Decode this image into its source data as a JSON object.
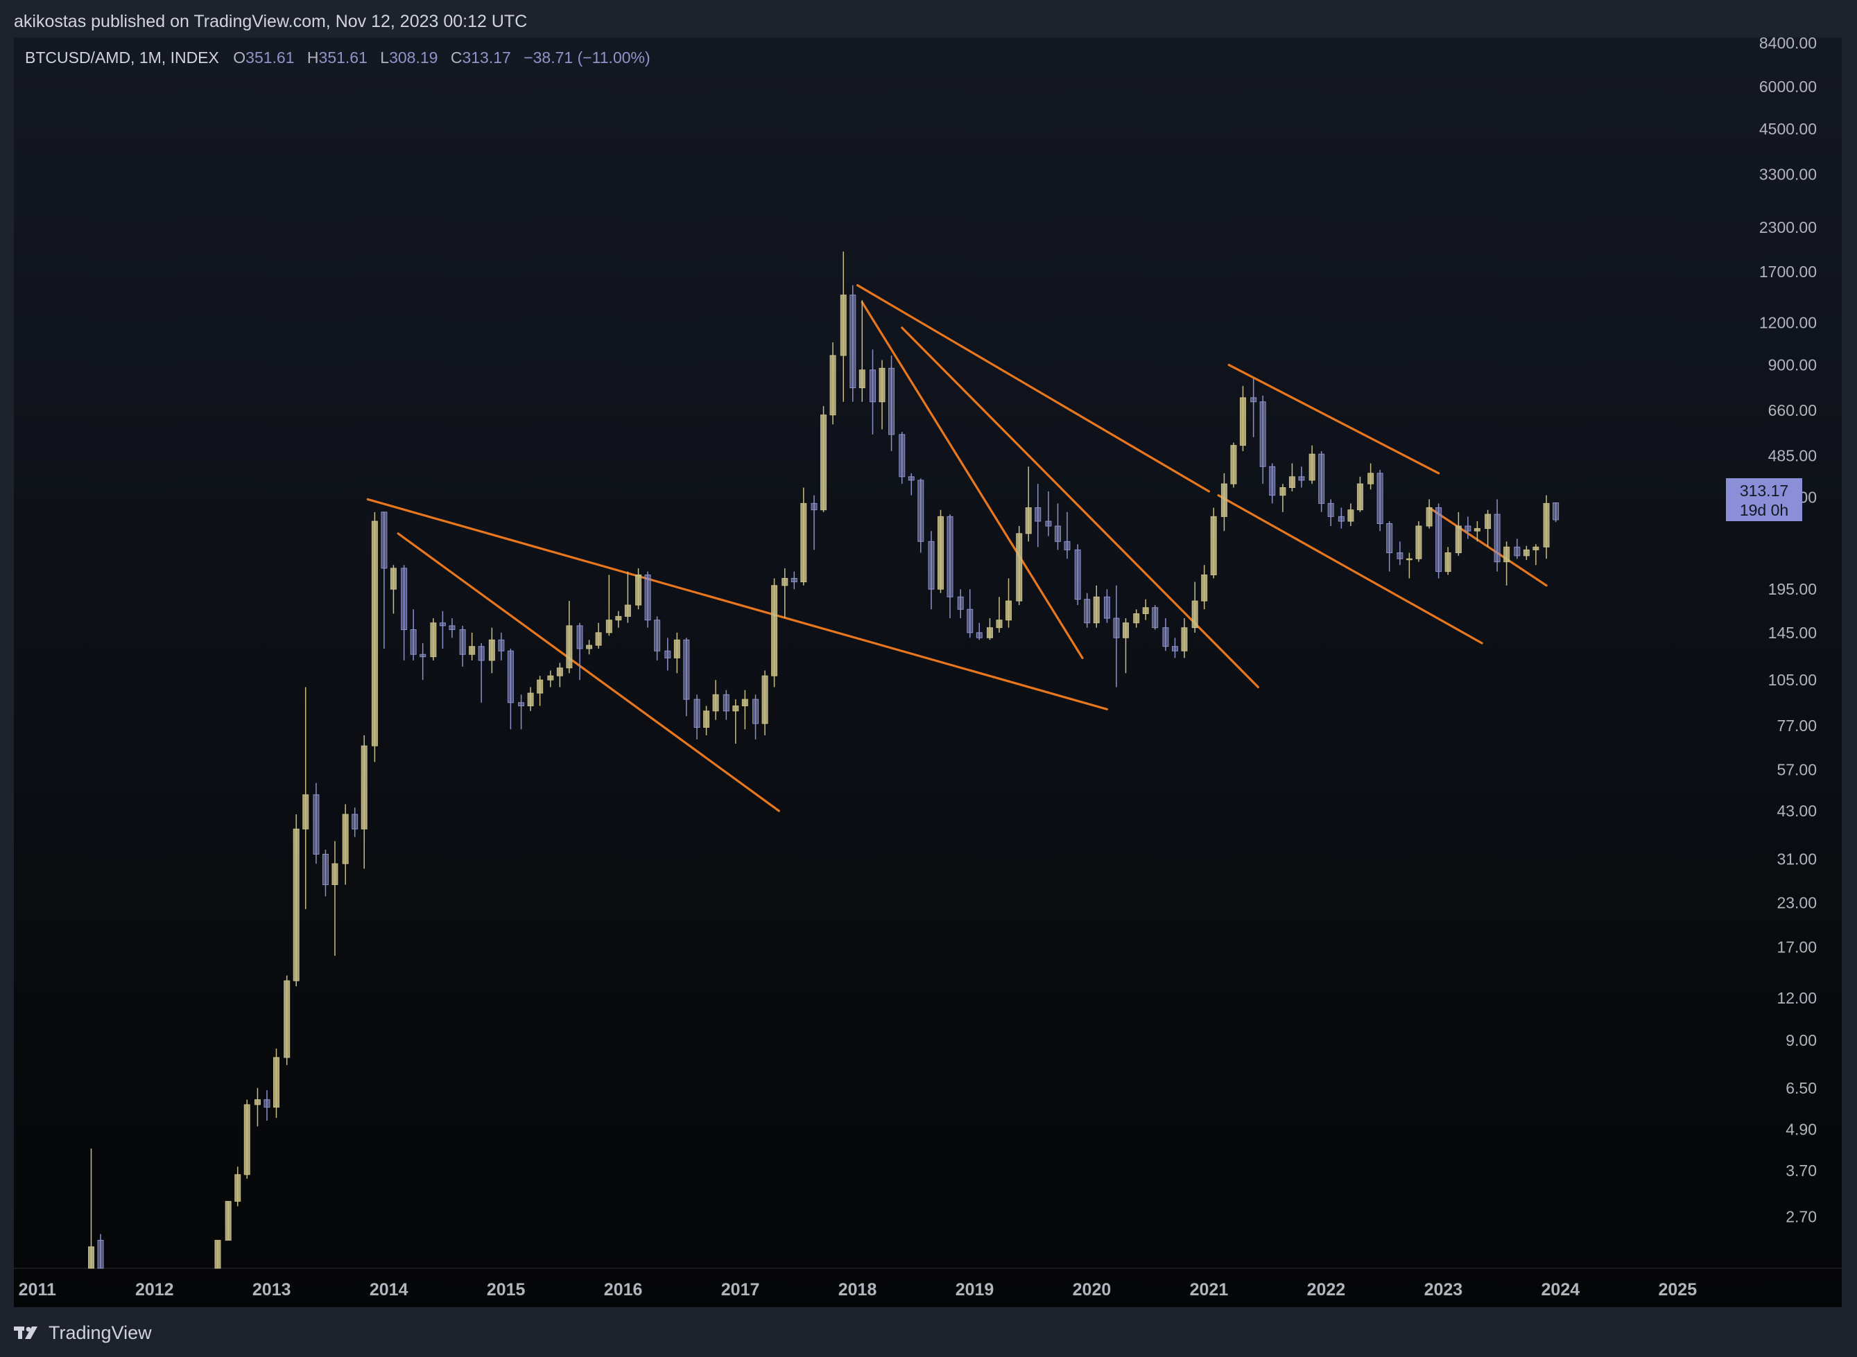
{
  "header": {
    "publisher_line": "akikostas published on TradingView.com, Nov 12, 2023 00:12 UTC"
  },
  "legend": {
    "symbol": "BTCUSD/AMD, 1M, INDEX",
    "open_key": "O",
    "open": "351.61",
    "high_key": "H",
    "high": "351.61",
    "low_key": "L",
    "low": "308.19",
    "close_key": "C",
    "close": "313.17",
    "change": "−38.71 (−11.00%)"
  },
  "price_tag": {
    "price": "313.17",
    "countdown": "19d 0h"
  },
  "footer": {
    "brand": "TradingView",
    "logo_icon": "tradingview-logo-icon"
  },
  "colors": {
    "up": "#c7bd86",
    "down": "#8c90c8",
    "trendline": "#e9771e",
    "axis_text": "#b2b5be"
  },
  "chart_data": {
    "type": "candlestick",
    "scale": "log",
    "interval": "1M",
    "y_tick_labels": [
      "8400.00",
      "6000.00",
      "4500.00",
      "3300.00",
      "2300.00",
      "1700.00",
      "1200.00",
      "900.00",
      "660.00",
      "485.00",
      "365.00",
      "195.00",
      "145.00",
      "105.00",
      "77.00",
      "57.00",
      "43.00",
      "31.00",
      "23.00",
      "17.00",
      "12.00",
      "9.00",
      "6.50",
      "4.90",
      "3.70",
      "2.70"
    ],
    "x_tick_labels": [
      "2011",
      "2012",
      "2013",
      "2014",
      "2015",
      "2016",
      "2017",
      "2018",
      "2019",
      "2020",
      "2021",
      "2022",
      "2023",
      "2024",
      "2025"
    ],
    "x_range": [
      2010.8,
      2025.3
    ],
    "ylim": [
      1.9,
      8400
    ],
    "candles": [
      {
        "t": 2011.46,
        "o": 1.9,
        "h": 4.3,
        "l": 1.9,
        "c": 2.2
      },
      {
        "t": 2011.54,
        "o": 2.3,
        "h": 2.4,
        "l": 1.9,
        "c": 1.9
      },
      {
        "t": 2012.54,
        "o": 1.9,
        "h": 2.3,
        "l": 1.9,
        "c": 2.3
      },
      {
        "t": 2012.63,
        "o": 2.3,
        "h": 3.0,
        "l": 2.3,
        "c": 3.0
      },
      {
        "t": 2012.71,
        "o": 3.0,
        "h": 3.8,
        "l": 2.9,
        "c": 3.6
      },
      {
        "t": 2012.79,
        "o": 3.6,
        "h": 6.0,
        "l": 3.5,
        "c": 5.8
      },
      {
        "t": 2012.88,
        "o": 5.8,
        "h": 6.5,
        "l": 5.0,
        "c": 6.0
      },
      {
        "t": 2012.96,
        "o": 6.0,
        "h": 6.4,
        "l": 5.2,
        "c": 5.7
      },
      {
        "t": 2013.04,
        "o": 5.7,
        "h": 8.5,
        "l": 5.3,
        "c": 8.0
      },
      {
        "t": 2013.13,
        "o": 8.0,
        "h": 14.0,
        "l": 7.6,
        "c": 13.5
      },
      {
        "t": 2013.21,
        "o": 13.5,
        "h": 42.0,
        "l": 13.0,
        "c": 38.0
      },
      {
        "t": 2013.29,
        "o": 38.0,
        "h": 100.0,
        "l": 22.0,
        "c": 48.0
      },
      {
        "t": 2013.38,
        "o": 48.0,
        "h": 52.0,
        "l": 30.0,
        "c": 32.0
      },
      {
        "t": 2013.46,
        "o": 32.0,
        "h": 33.0,
        "l": 24.0,
        "c": 26.0
      },
      {
        "t": 2013.54,
        "o": 26.0,
        "h": 35.0,
        "l": 16.0,
        "c": 30.0
      },
      {
        "t": 2013.63,
        "o": 30.0,
        "h": 45.0,
        "l": 26.0,
        "c": 42.0
      },
      {
        "t": 2013.71,
        "o": 42.0,
        "h": 44.0,
        "l": 36.0,
        "c": 38.0
      },
      {
        "t": 2013.79,
        "o": 38.0,
        "h": 72.0,
        "l": 29.0,
        "c": 67.0
      },
      {
        "t": 2013.88,
        "o": 67.0,
        "h": 330.0,
        "l": 60.0,
        "c": 310.0
      },
      {
        "t": 2013.96,
        "o": 330.0,
        "h": 330.0,
        "l": 130.0,
        "c": 225.0
      },
      {
        "t": 2014.04,
        "o": 195.0,
        "h": 230.0,
        "l": 165.0,
        "c": 225.0
      },
      {
        "t": 2014.13,
        "o": 225.0,
        "h": 230.0,
        "l": 120.0,
        "c": 148.0
      },
      {
        "t": 2014.21,
        "o": 148.0,
        "h": 170.0,
        "l": 120.0,
        "c": 125.0
      },
      {
        "t": 2014.29,
        "o": 125.0,
        "h": 135.0,
        "l": 105.0,
        "c": 123.0
      },
      {
        "t": 2014.38,
        "o": 123.0,
        "h": 160.0,
        "l": 120.0,
        "c": 155.0
      },
      {
        "t": 2014.46,
        "o": 155.0,
        "h": 168.0,
        "l": 130.0,
        "c": 152.0
      },
      {
        "t": 2014.54,
        "o": 152.0,
        "h": 160.0,
        "l": 140.0,
        "c": 148.0
      },
      {
        "t": 2014.63,
        "o": 148.0,
        "h": 152.0,
        "l": 115.0,
        "c": 125.0
      },
      {
        "t": 2014.71,
        "o": 125.0,
        "h": 145.0,
        "l": 120.0,
        "c": 132.0
      },
      {
        "t": 2014.79,
        "o": 132.0,
        "h": 135.0,
        "l": 90.0,
        "c": 120.0
      },
      {
        "t": 2014.88,
        "o": 120.0,
        "h": 150.0,
        "l": 110.0,
        "c": 138.0
      },
      {
        "t": 2014.96,
        "o": 138.0,
        "h": 145.0,
        "l": 120.0,
        "c": 128.0
      },
      {
        "t": 2015.04,
        "o": 128.0,
        "h": 130.0,
        "l": 75.0,
        "c": 90.0
      },
      {
        "t": 2015.13,
        "o": 90.0,
        "h": 95.0,
        "l": 75.0,
        "c": 88.0
      },
      {
        "t": 2015.21,
        "o": 88.0,
        "h": 100.0,
        "l": 85.0,
        "c": 96.0
      },
      {
        "t": 2015.29,
        "o": 96.0,
        "h": 108.0,
        "l": 88.0,
        "c": 105.0
      },
      {
        "t": 2015.38,
        "o": 105.0,
        "h": 112.0,
        "l": 100.0,
        "c": 108.0
      },
      {
        "t": 2015.46,
        "o": 108.0,
        "h": 118.0,
        "l": 100.0,
        "c": 114.0
      },
      {
        "t": 2015.54,
        "o": 114.0,
        "h": 180.0,
        "l": 110.0,
        "c": 152.0
      },
      {
        "t": 2015.63,
        "o": 152.0,
        "h": 155.0,
        "l": 105.0,
        "c": 130.0
      },
      {
        "t": 2015.71,
        "o": 130.0,
        "h": 138.0,
        "l": 125.0,
        "c": 133.0
      },
      {
        "t": 2015.79,
        "o": 133.0,
        "h": 155.0,
        "l": 130.0,
        "c": 145.0
      },
      {
        "t": 2015.88,
        "o": 145.0,
        "h": 215.0,
        "l": 142.0,
        "c": 158.0
      },
      {
        "t": 2015.96,
        "o": 158.0,
        "h": 168.0,
        "l": 150.0,
        "c": 162.0
      },
      {
        "t": 2016.04,
        "o": 162.0,
        "h": 220.0,
        "l": 155.0,
        "c": 175.0
      },
      {
        "t": 2016.13,
        "o": 175.0,
        "h": 225.0,
        "l": 170.0,
        "c": 215.0
      },
      {
        "t": 2016.21,
        "o": 215.0,
        "h": 220.0,
        "l": 150.0,
        "c": 158.0
      },
      {
        "t": 2016.29,
        "o": 158.0,
        "h": 162.0,
        "l": 120.0,
        "c": 128.0
      },
      {
        "t": 2016.38,
        "o": 128.0,
        "h": 140.0,
        "l": 112.0,
        "c": 122.0
      },
      {
        "t": 2016.46,
        "o": 122.0,
        "h": 145.0,
        "l": 110.0,
        "c": 138.0
      },
      {
        "t": 2016.54,
        "o": 138.0,
        "h": 140.0,
        "l": 82.0,
        "c": 92.0
      },
      {
        "t": 2016.63,
        "o": 92.0,
        "h": 95.0,
        "l": 70.0,
        "c": 76.0
      },
      {
        "t": 2016.71,
        "o": 76.0,
        "h": 88.0,
        "l": 72.0,
        "c": 85.0
      },
      {
        "t": 2016.79,
        "o": 85.0,
        "h": 105.0,
        "l": 80.0,
        "c": 95.0
      },
      {
        "t": 2016.88,
        "o": 95.0,
        "h": 98.0,
        "l": 80.0,
        "c": 85.0
      },
      {
        "t": 2016.96,
        "o": 85.0,
        "h": 92.0,
        "l": 68.0,
        "c": 88.0
      },
      {
        "t": 2017.04,
        "o": 88.0,
        "h": 98.0,
        "l": 75.0,
        "c": 92.0
      },
      {
        "t": 2017.13,
        "o": 92.0,
        "h": 95.0,
        "l": 70.0,
        "c": 78.0
      },
      {
        "t": 2017.21,
        "o": 78.0,
        "h": 112.0,
        "l": 72.0,
        "c": 108.0
      },
      {
        "t": 2017.29,
        "o": 108.0,
        "h": 210.0,
        "l": 100.0,
        "c": 200.0
      },
      {
        "t": 2017.38,
        "o": 200.0,
        "h": 225.0,
        "l": 160.0,
        "c": 210.0
      },
      {
        "t": 2017.46,
        "o": 210.0,
        "h": 220.0,
        "l": 195.0,
        "c": 205.0
      },
      {
        "t": 2017.54,
        "o": 205.0,
        "h": 390.0,
        "l": 200.0,
        "c": 350.0
      },
      {
        "t": 2017.63,
        "o": 350.0,
        "h": 370.0,
        "l": 255.0,
        "c": 335.0
      },
      {
        "t": 2017.71,
        "o": 335.0,
        "h": 680.0,
        "l": 330.0,
        "c": 640.0
      },
      {
        "t": 2017.79,
        "o": 640.0,
        "h": 1050.0,
        "l": 600.0,
        "c": 960.0
      },
      {
        "t": 2017.88,
        "o": 960.0,
        "h": 1950.0,
        "l": 700.0,
        "c": 1450.0
      },
      {
        "t": 2017.96,
        "o": 1450.0,
        "h": 1550.0,
        "l": 700.0,
        "c": 770.0
      },
      {
        "t": 2018.04,
        "o": 770.0,
        "h": 1400.0,
        "l": 700.0,
        "c": 870.0
      },
      {
        "t": 2018.13,
        "o": 870.0,
        "h": 1000.0,
        "l": 560.0,
        "c": 700.0
      },
      {
        "t": 2018.21,
        "o": 700.0,
        "h": 930.0,
        "l": 580.0,
        "c": 880.0
      },
      {
        "t": 2018.29,
        "o": 880.0,
        "h": 960.0,
        "l": 500.0,
        "c": 560.0
      },
      {
        "t": 2018.38,
        "o": 560.0,
        "h": 570.0,
        "l": 400.0,
        "c": 420.0
      },
      {
        "t": 2018.46,
        "o": 420.0,
        "h": 430.0,
        "l": 370.0,
        "c": 410.0
      },
      {
        "t": 2018.54,
        "o": 410.0,
        "h": 415.0,
        "l": 250.0,
        "c": 270.0
      },
      {
        "t": 2018.63,
        "o": 270.0,
        "h": 290.0,
        "l": 170.0,
        "c": 195.0
      },
      {
        "t": 2018.71,
        "o": 195.0,
        "h": 335.0,
        "l": 190.0,
        "c": 320.0
      },
      {
        "t": 2018.79,
        "o": 320.0,
        "h": 325.0,
        "l": 160.0,
        "c": 185.0
      },
      {
        "t": 2018.88,
        "o": 185.0,
        "h": 195.0,
        "l": 160.0,
        "c": 170.0
      },
      {
        "t": 2018.96,
        "o": 170.0,
        "h": 195.0,
        "l": 140.0,
        "c": 145.0
      },
      {
        "t": 2019.04,
        "o": 145.0,
        "h": 155.0,
        "l": 138.0,
        "c": 140.0
      },
      {
        "t": 2019.13,
        "o": 140.0,
        "h": 160.0,
        "l": 138.0,
        "c": 150.0
      },
      {
        "t": 2019.21,
        "o": 150.0,
        "h": 185.0,
        "l": 145.0,
        "c": 158.0
      },
      {
        "t": 2019.29,
        "o": 158.0,
        "h": 210.0,
        "l": 150.0,
        "c": 180.0
      },
      {
        "t": 2019.38,
        "o": 180.0,
        "h": 300.0,
        "l": 175.0,
        "c": 285.0
      },
      {
        "t": 2019.46,
        "o": 285.0,
        "h": 450.0,
        "l": 270.0,
        "c": 340.0
      },
      {
        "t": 2019.54,
        "o": 340.0,
        "h": 400.0,
        "l": 260.0,
        "c": 310.0
      },
      {
        "t": 2019.63,
        "o": 310.0,
        "h": 380.0,
        "l": 280.0,
        "c": 300.0
      },
      {
        "t": 2019.71,
        "o": 300.0,
        "h": 350.0,
        "l": 255.0,
        "c": 270.0
      },
      {
        "t": 2019.79,
        "o": 270.0,
        "h": 330.0,
        "l": 240.0,
        "c": 255.0
      },
      {
        "t": 2019.88,
        "o": 255.0,
        "h": 265.0,
        "l": 175.0,
        "c": 182.0
      },
      {
        "t": 2019.96,
        "o": 182.0,
        "h": 190.0,
        "l": 150.0,
        "c": 155.0
      },
      {
        "t": 2020.04,
        "o": 155.0,
        "h": 200.0,
        "l": 150.0,
        "c": 185.0
      },
      {
        "t": 2020.13,
        "o": 185.0,
        "h": 195.0,
        "l": 155.0,
        "c": 160.0
      },
      {
        "t": 2020.21,
        "o": 160.0,
        "h": 200.0,
        "l": 100.0,
        "c": 140.0
      },
      {
        "t": 2020.29,
        "o": 140.0,
        "h": 160.0,
        "l": 110.0,
        "c": 155.0
      },
      {
        "t": 2020.38,
        "o": 155.0,
        "h": 170.0,
        "l": 150.0,
        "c": 165.0
      },
      {
        "t": 2020.46,
        "o": 165.0,
        "h": 182.0,
        "l": 158.0,
        "c": 172.0
      },
      {
        "t": 2020.54,
        "o": 172.0,
        "h": 175.0,
        "l": 148.0,
        "c": 150.0
      },
      {
        "t": 2020.63,
        "o": 150.0,
        "h": 160.0,
        "l": 128.0,
        "c": 132.0
      },
      {
        "t": 2020.71,
        "o": 132.0,
        "h": 140.0,
        "l": 122.0,
        "c": 128.0
      },
      {
        "t": 2020.79,
        "o": 128.0,
        "h": 160.0,
        "l": 122.0,
        "c": 150.0
      },
      {
        "t": 2020.88,
        "o": 150.0,
        "h": 205.0,
        "l": 145.0,
        "c": 180.0
      },
      {
        "t": 2020.96,
        "o": 180.0,
        "h": 230.0,
        "l": 170.0,
        "c": 215.0
      },
      {
        "t": 2021.04,
        "o": 215.0,
        "h": 340.0,
        "l": 210.0,
        "c": 320.0
      },
      {
        "t": 2021.13,
        "o": 320.0,
        "h": 430.0,
        "l": 290.0,
        "c": 400.0
      },
      {
        "t": 2021.21,
        "o": 400.0,
        "h": 530.0,
        "l": 390.0,
        "c": 520.0
      },
      {
        "t": 2021.29,
        "o": 520.0,
        "h": 780.0,
        "l": 500.0,
        "c": 720.0
      },
      {
        "t": 2021.38,
        "o": 720.0,
        "h": 820.0,
        "l": 550.0,
        "c": 700.0
      },
      {
        "t": 2021.46,
        "o": 700.0,
        "h": 730.0,
        "l": 400.0,
        "c": 450.0
      },
      {
        "t": 2021.54,
        "o": 450.0,
        "h": 460.0,
        "l": 350.0,
        "c": 370.0
      },
      {
        "t": 2021.63,
        "o": 370.0,
        "h": 400.0,
        "l": 330.0,
        "c": 390.0
      },
      {
        "t": 2021.71,
        "o": 390.0,
        "h": 460.0,
        "l": 380.0,
        "c": 420.0
      },
      {
        "t": 2021.79,
        "o": 420.0,
        "h": 450.0,
        "l": 390.0,
        "c": 410.0
      },
      {
        "t": 2021.88,
        "o": 410.0,
        "h": 520.0,
        "l": 400.0,
        "c": 490.0
      },
      {
        "t": 2021.96,
        "o": 490.0,
        "h": 500.0,
        "l": 330.0,
        "c": 350.0
      },
      {
        "t": 2022.04,
        "o": 350.0,
        "h": 360.0,
        "l": 300.0,
        "c": 320.0
      },
      {
        "t": 2022.13,
        "o": 320.0,
        "h": 340.0,
        "l": 295.0,
        "c": 310.0
      },
      {
        "t": 2022.21,
        "o": 310.0,
        "h": 350.0,
        "l": 300.0,
        "c": 335.0
      },
      {
        "t": 2022.29,
        "o": 335.0,
        "h": 420.0,
        "l": 330.0,
        "c": 400.0
      },
      {
        "t": 2022.38,
        "o": 400.0,
        "h": 460.0,
        "l": 385.0,
        "c": 430.0
      },
      {
        "t": 2022.46,
        "o": 430.0,
        "h": 440.0,
        "l": 290.0,
        "c": 305.0
      },
      {
        "t": 2022.54,
        "o": 305.0,
        "h": 310.0,
        "l": 220.0,
        "c": 250.0
      },
      {
        "t": 2022.63,
        "o": 250.0,
        "h": 270.0,
        "l": 230.0,
        "c": 240.0
      },
      {
        "t": 2022.71,
        "o": 240.0,
        "h": 250.0,
        "l": 210.0,
        "c": 240.0
      },
      {
        "t": 2022.79,
        "o": 240.0,
        "h": 310.0,
        "l": 235.0,
        "c": 300.0
      },
      {
        "t": 2022.88,
        "o": 300.0,
        "h": 360.0,
        "l": 295.0,
        "c": 340.0
      },
      {
        "t": 2022.96,
        "o": 340.0,
        "h": 350.0,
        "l": 210.0,
        "c": 220.0
      },
      {
        "t": 2023.04,
        "o": 220.0,
        "h": 260.0,
        "l": 215.0,
        "c": 250.0
      },
      {
        "t": 2023.13,
        "o": 250.0,
        "h": 330.0,
        "l": 245.0,
        "c": 300.0
      },
      {
        "t": 2023.21,
        "o": 300.0,
        "h": 320.0,
        "l": 275.0,
        "c": 290.0
      },
      {
        "t": 2023.29,
        "o": 290.0,
        "h": 310.0,
        "l": 270.0,
        "c": 295.0
      },
      {
        "t": 2023.38,
        "o": 295.0,
        "h": 335.0,
        "l": 260.0,
        "c": 325.0
      },
      {
        "t": 2023.46,
        "o": 325.0,
        "h": 360.0,
        "l": 220.0,
        "c": 235.0
      },
      {
        "t": 2023.54,
        "o": 235.0,
        "h": 270.0,
        "l": 200.0,
        "c": 260.0
      },
      {
        "t": 2023.63,
        "o": 260.0,
        "h": 275.0,
        "l": 240.0,
        "c": 245.0
      },
      {
        "t": 2023.71,
        "o": 245.0,
        "h": 262.0,
        "l": 238.0,
        "c": 255.0
      },
      {
        "t": 2023.79,
        "o": 255.0,
        "h": 265.0,
        "l": 230.0,
        "c": 260.0
      },
      {
        "t": 2023.88,
        "o": 260.0,
        "h": 370.0,
        "l": 240.0,
        "c": 350.0
      },
      {
        "t": 2023.96,
        "o": 351.61,
        "h": 351.61,
        "l": 308.19,
        "c": 313.17
      }
    ],
    "trendlines": [
      {
        "x1": 2013.82,
        "y1": 360,
        "x2": 2020.13,
        "y2": 86
      },
      {
        "x1": 2014.08,
        "y1": 285,
        "x2": 2017.33,
        "y2": 43
      },
      {
        "x1": 2018.0,
        "y1": 1550,
        "x2": 2021.0,
        "y2": 380
      },
      {
        "x1": 2018.04,
        "y1": 1380,
        "x2": 2019.92,
        "y2": 122
      },
      {
        "x1": 2018.38,
        "y1": 1160,
        "x2": 2021.42,
        "y2": 100
      },
      {
        "x1": 2021.17,
        "y1": 900,
        "x2": 2022.96,
        "y2": 430
      },
      {
        "x1": 2021.08,
        "y1": 370,
        "x2": 2023.33,
        "y2": 135
      },
      {
        "x1": 2022.88,
        "y1": 340,
        "x2": 2023.88,
        "y2": 200
      }
    ]
  }
}
